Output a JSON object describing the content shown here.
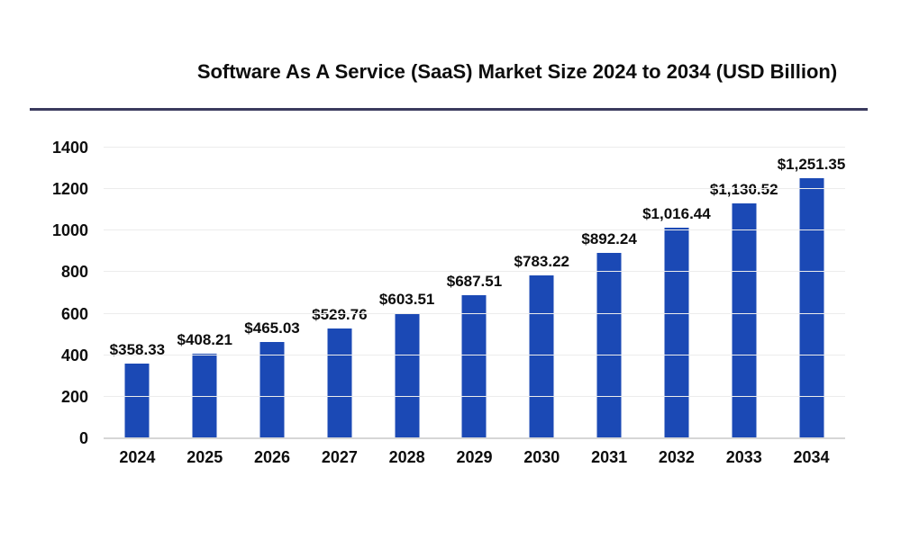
{
  "title": "Software As A Service (SaaS) Market Size 2024 to 2034 (USD Billion)",
  "colors": {
    "bar": "#1b49b5",
    "divider": "#3a3a5e",
    "gridline": "#ececec",
    "axis_line": "#d6d6d6",
    "text": "#0d0d0d",
    "background": "#ffffff"
  },
  "chart_data": {
    "type": "bar",
    "title": "Software As A Service (SaaS) Market Size 2024 to 2034 (USD Billion)",
    "categories": [
      "2024",
      "2025",
      "2026",
      "2027",
      "2028",
      "2029",
      "2030",
      "2031",
      "2032",
      "2033",
      "2034"
    ],
    "values": [
      358.33,
      408.21,
      465.03,
      529.76,
      603.51,
      687.51,
      783.22,
      892.24,
      1016.44,
      1130.52,
      1251.35
    ],
    "data_labels": [
      "$358.33",
      "$408.21",
      "$465.03",
      "$529.76",
      "$603.51",
      "$687.51",
      "$783.22",
      "$892.24",
      "$1,016.44",
      "$1,130.52",
      "$1,251.35"
    ],
    "xlabel": "",
    "ylabel": "",
    "yticks": [
      0,
      200,
      400,
      600,
      800,
      1000,
      1200,
      1400
    ],
    "ylim": [
      0,
      1400
    ],
    "grid": true,
    "legend": false,
    "bar_color": "#1b49b5"
  }
}
